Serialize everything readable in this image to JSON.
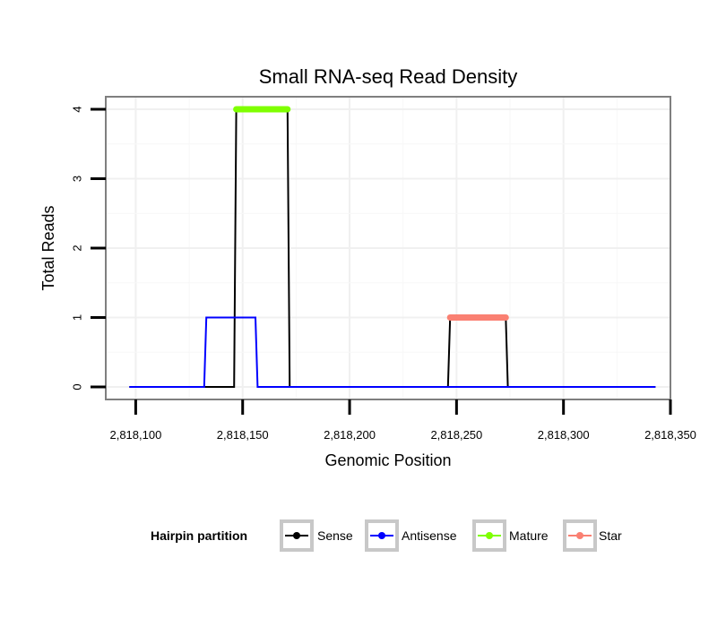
{
  "chart_data": {
    "type": "line",
    "title": "Small RNA-seq Read Density",
    "xlabel": "Genomic Position",
    "ylabel": "Total Reads",
    "xlim": [
      2818086,
      2818350
    ],
    "ylim": [
      -0.18,
      4.18
    ],
    "x_ticks": [
      2818100,
      2818150,
      2818200,
      2818250,
      2818300,
      2818350
    ],
    "x_tick_labels": [
      "2,818,100",
      "2,818,150",
      "2,818,200",
      "2,818,250",
      "2,818,300",
      "2,818,350"
    ],
    "y_ticks": [
      0,
      1,
      2,
      3,
      4
    ],
    "y_tick_labels": [
      "0",
      "1",
      "2",
      "3",
      "4"
    ],
    "grid": true,
    "legend_position": "bottom",
    "legend_title": "Hairpin partition",
    "series": [
      {
        "name": "Sense",
        "color": "#000000",
        "points": [
          [
            2818097,
            0
          ],
          [
            2818146,
            0
          ],
          [
            2818147,
            4
          ],
          [
            2818171,
            4
          ],
          [
            2818172,
            0
          ],
          [
            2818246,
            0
          ],
          [
            2818247,
            1
          ],
          [
            2818273,
            1
          ],
          [
            2818274,
            0
          ],
          [
            2818343,
            0
          ]
        ]
      },
      {
        "name": "Antisense",
        "color": "#0000ff",
        "points": [
          [
            2818097,
            0
          ],
          [
            2818132,
            0
          ],
          [
            2818133,
            1
          ],
          [
            2818156,
            1
          ],
          [
            2818157,
            0
          ],
          [
            2818343,
            0
          ]
        ]
      },
      {
        "name": "Mature",
        "color": "#7fff00",
        "points": [
          [
            2818147,
            4
          ],
          [
            2818171,
            4
          ]
        ]
      },
      {
        "name": "Star",
        "color": "#fa8072",
        "points": [
          [
            2818247,
            1
          ],
          [
            2818273,
            1
          ]
        ]
      }
    ]
  }
}
